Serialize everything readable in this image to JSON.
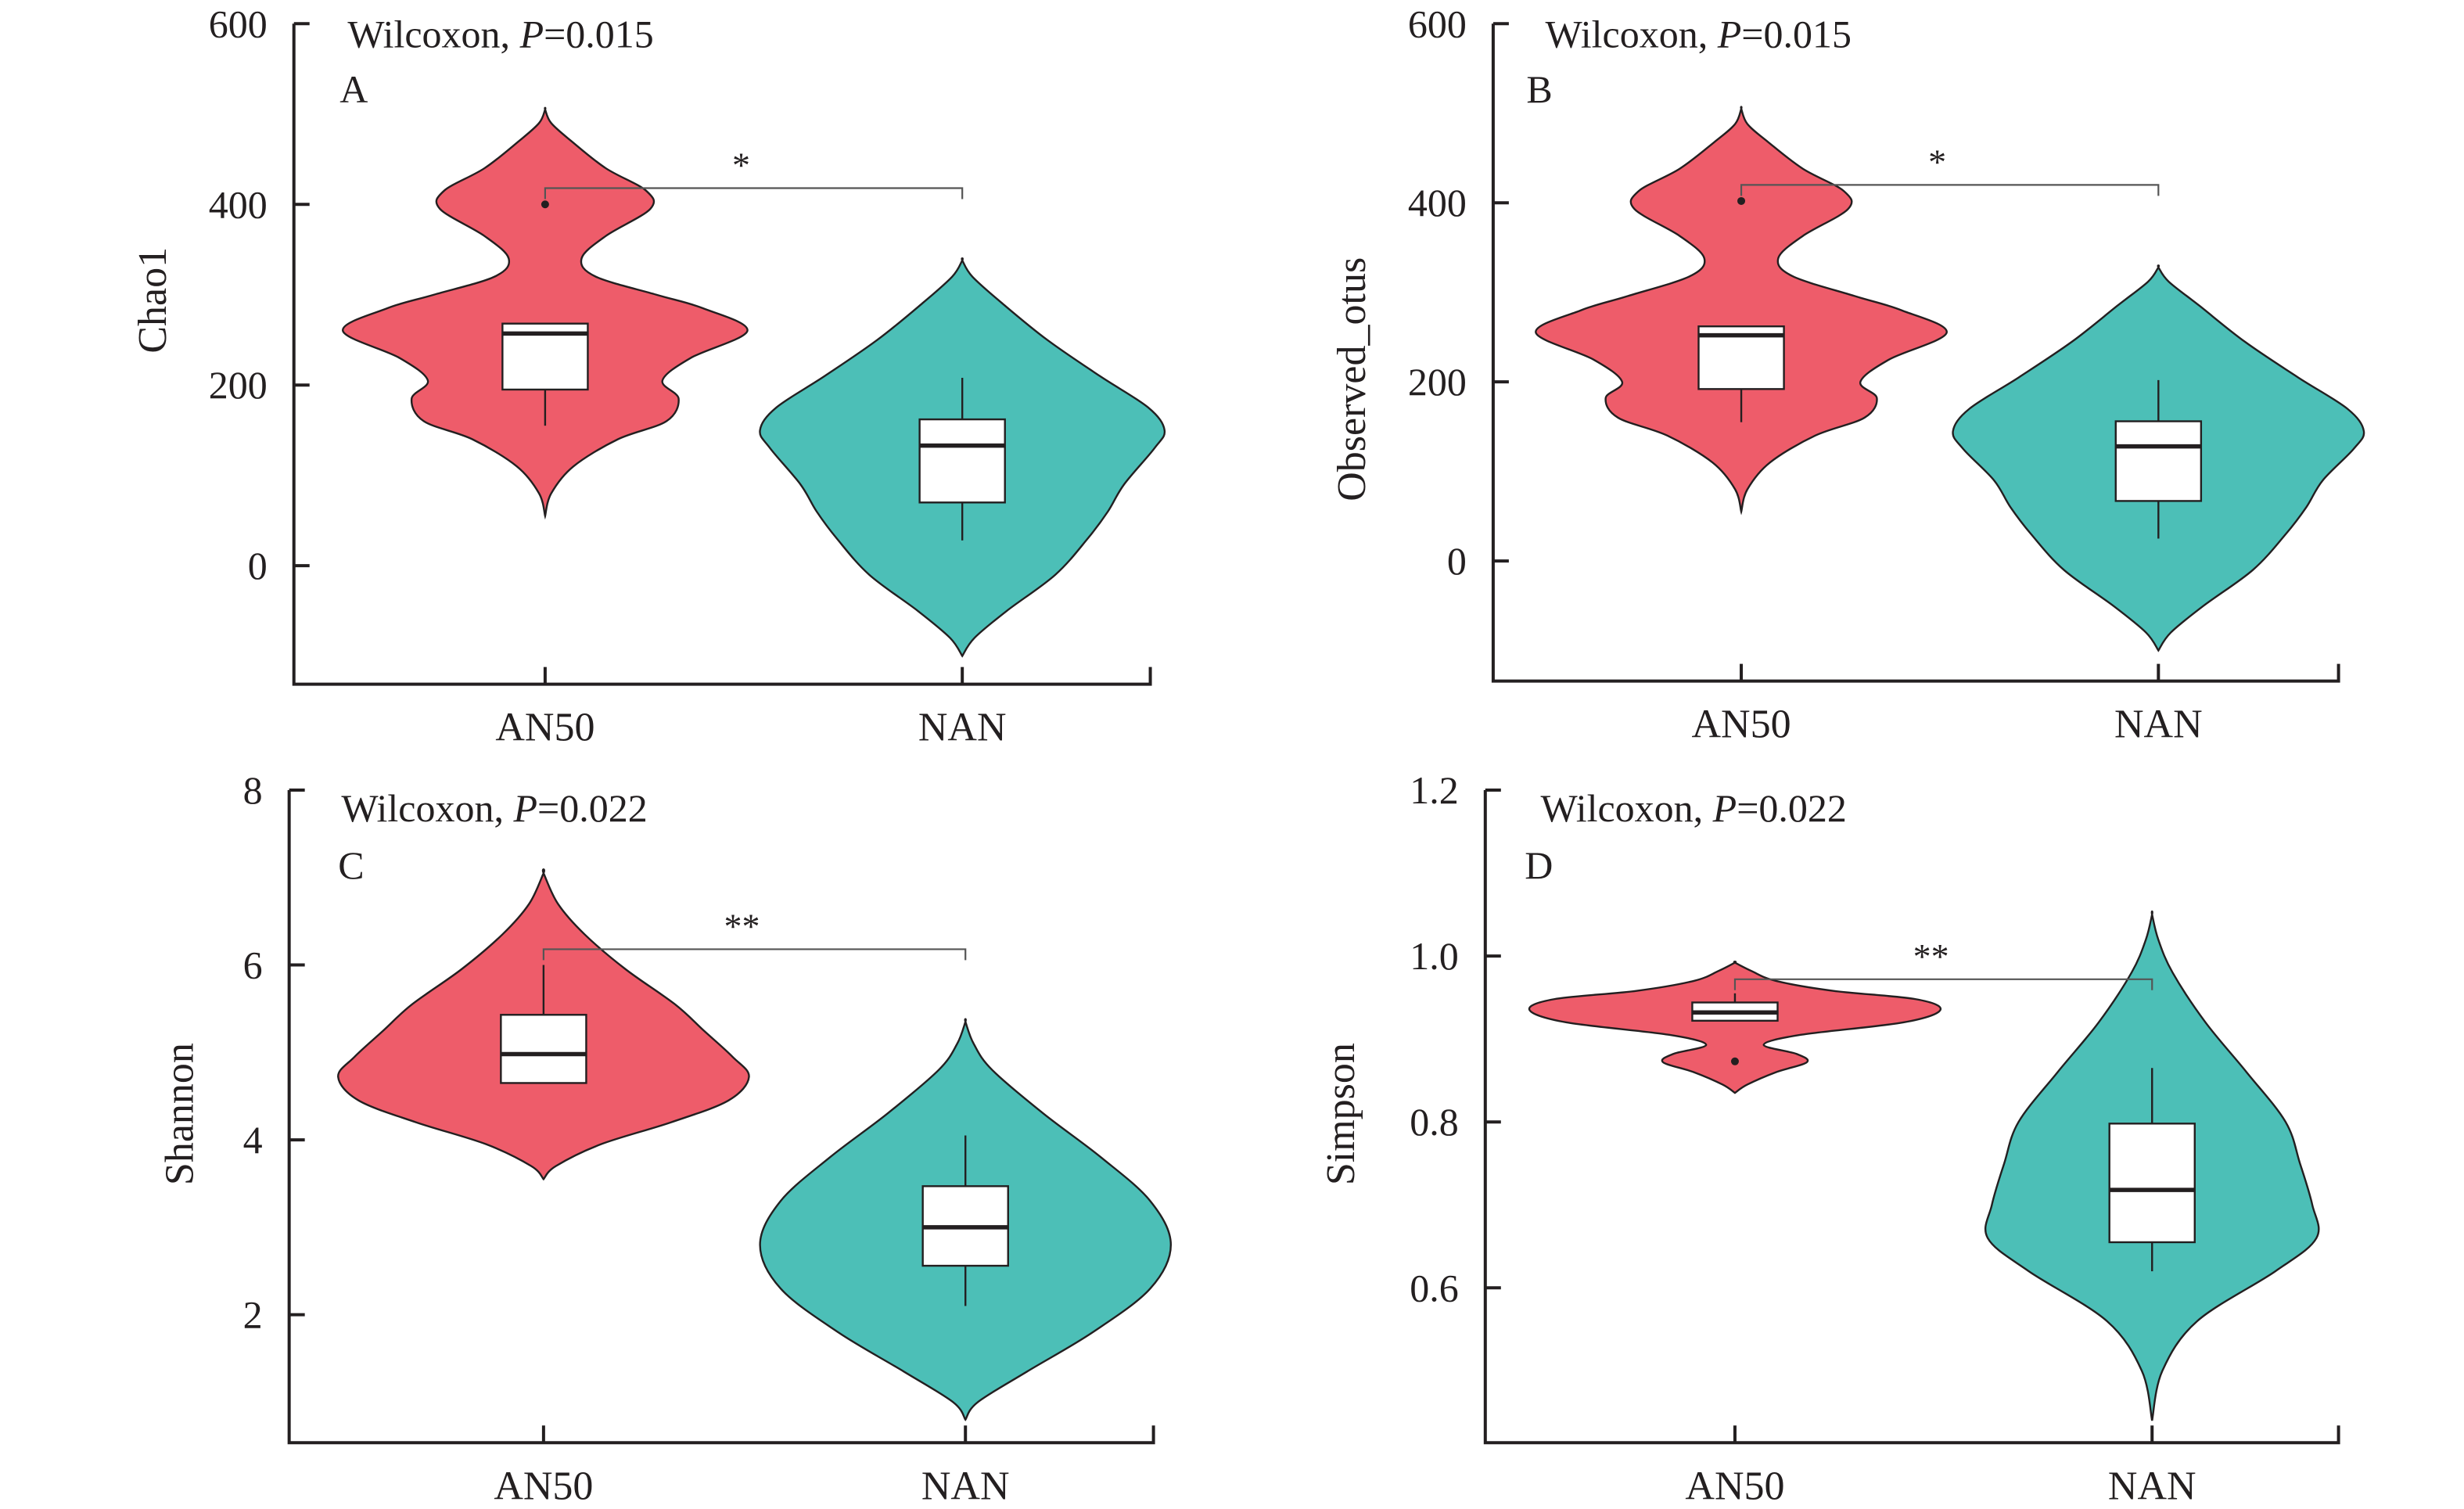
{
  "figure": {
    "colors": {
      "AN50": "#EE5C6A",
      "NAN": "#4CBFB7",
      "ink": "#231f20"
    }
  },
  "chart_data": [
    {
      "type": "violin",
      "panel": "A",
      "title": "",
      "stat_label": {
        "prefix": "Wilcoxon, ",
        "p_symbol": "P",
        "p_value": "=0.015"
      },
      "xlabel": "",
      "ylabel": "Chao1",
      "ylim": [
        -135,
        600
      ],
      "yticks": [
        0,
        200,
        400,
        600
      ],
      "ytick_labels": [
        "0",
        "200",
        "400",
        "600"
      ],
      "categories": [
        "AN50",
        "NAN"
      ],
      "significance": {
        "label": "*",
        "bracket_y": 418
      },
      "series": [
        {
          "name": "AN50",
          "box": {
            "whisker_low": 155,
            "q1": 195,
            "median": 257,
            "q3": 268,
            "whisker_high": 268
          },
          "outliers": [
            400
          ],
          "violin": [
            [
              55,
              0
            ],
            [
              80,
              0.03
            ],
            [
              110,
              0.14
            ],
            [
              140,
              0.36
            ],
            [
              160,
              0.6
            ],
            [
              185,
              0.66
            ],
            [
              205,
              0.58
            ],
            [
              230,
              0.72
            ],
            [
              260,
              1.0
            ],
            [
              285,
              0.78
            ],
            [
              300,
              0.55
            ],
            [
              320,
              0.25
            ],
            [
              340,
              0.18
            ],
            [
              365,
              0.3
            ],
            [
              395,
              0.52
            ],
            [
              415,
              0.5
            ],
            [
              440,
              0.3
            ],
            [
              470,
              0.13
            ],
            [
              490,
              0.03
            ],
            [
              505,
              0
            ]
          ]
        },
        {
          "name": "NAN",
          "box": {
            "whisker_low": 28,
            "q1": 70,
            "median": 133,
            "q3": 162,
            "whisker_high": 208
          },
          "outliers": [],
          "violin": [
            [
              -100,
              0
            ],
            [
              -80,
              0.06
            ],
            [
              -50,
              0.22
            ],
            [
              -10,
              0.46
            ],
            [
              30,
              0.62
            ],
            [
              60,
              0.72
            ],
            [
              90,
              0.8
            ],
            [
              130,
              0.95
            ],
            [
              150,
              1.0
            ],
            [
              175,
              0.92
            ],
            [
              210,
              0.68
            ],
            [
              250,
              0.42
            ],
            [
              290,
              0.2
            ],
            [
              320,
              0.05
            ],
            [
              338,
              0
            ]
          ]
        }
      ]
    },
    {
      "type": "violin",
      "panel": "B",
      "title": "",
      "stat_label": {
        "prefix": "Wilcoxon, ",
        "p_symbol": "P",
        "p_value": "=0.015"
      },
      "xlabel": "",
      "ylabel": "Observed_otus",
      "ylim": [
        -135,
        600
      ],
      "yticks": [
        0,
        200,
        400,
        600
      ],
      "ytick_labels": [
        "0",
        "200",
        "400",
        "600"
      ],
      "categories": [
        "AN50",
        "NAN"
      ],
      "significance": {
        "label": "*",
        "bracket_y": 420
      },
      "series": [
        {
          "name": "AN50",
          "box": {
            "whisker_low": 155,
            "q1": 192,
            "median": 252,
            "q3": 262,
            "whisker_high": 262
          },
          "outliers": [
            402
          ],
          "violin": [
            [
              55,
              0
            ],
            [
              80,
              0.03
            ],
            [
              110,
              0.14
            ],
            [
              140,
              0.36
            ],
            [
              160,
              0.6
            ],
            [
              182,
              0.66
            ],
            [
              200,
              0.58
            ],
            [
              225,
              0.72
            ],
            [
              255,
              1.0
            ],
            [
              280,
              0.78
            ],
            [
              296,
              0.55
            ],
            [
              318,
              0.25
            ],
            [
              338,
              0.18
            ],
            [
              363,
              0.3
            ],
            [
              393,
              0.52
            ],
            [
              413,
              0.5
            ],
            [
              438,
              0.3
            ],
            [
              468,
              0.13
            ],
            [
              488,
              0.03
            ],
            [
              505,
              0
            ]
          ]
        },
        {
          "name": "NAN",
          "box": {
            "whisker_low": 25,
            "q1": 67,
            "median": 128,
            "q3": 156,
            "whisker_high": 202
          },
          "outliers": [],
          "violin": [
            [
              -100,
              0
            ],
            [
              -80,
              0.06
            ],
            [
              -50,
              0.22
            ],
            [
              -10,
              0.46
            ],
            [
              30,
              0.62
            ],
            [
              60,
              0.72
            ],
            [
              90,
              0.8
            ],
            [
              125,
              0.95
            ],
            [
              145,
              1.0
            ],
            [
              170,
              0.92
            ],
            [
              205,
              0.68
            ],
            [
              245,
              0.42
            ],
            [
              285,
              0.2
            ],
            [
              312,
              0.05
            ],
            [
              328,
              0
            ]
          ]
        }
      ]
    },
    {
      "type": "violin",
      "panel": "C",
      "title": "",
      "stat_label": {
        "prefix": "Wilcoxon, ",
        "p_symbol": "P",
        "p_value": "=0.022"
      },
      "xlabel": "",
      "ylabel": "Shannon",
      "ylim": [
        0.55,
        8
      ],
      "yticks": [
        2,
        4,
        6,
        8
      ],
      "ytick_labels": [
        "2",
        "4",
        "6",
        "8"
      ],
      "categories": [
        "AN50",
        "NAN"
      ],
      "significance": {
        "label": "**",
        "bracket_y": 6.18
      },
      "series": [
        {
          "name": "AN50",
          "box": {
            "whisker_low": 4.65,
            "q1": 4.65,
            "median": 4.98,
            "q3": 5.43,
            "whisker_high": 6.0
          },
          "outliers": [],
          "violin": [
            [
              3.55,
              0
            ],
            [
              3.7,
              0.06
            ],
            [
              3.95,
              0.28
            ],
            [
              4.2,
              0.62
            ],
            [
              4.45,
              0.9
            ],
            [
              4.72,
              1.0
            ],
            [
              4.95,
              0.92
            ],
            [
              5.25,
              0.78
            ],
            [
              5.55,
              0.64
            ],
            [
              5.95,
              0.4
            ],
            [
              6.35,
              0.2
            ],
            [
              6.7,
              0.07
            ],
            [
              7.05,
              0
            ]
          ]
        },
        {
          "name": "NAN",
          "box": {
            "whisker_low": 2.1,
            "q1": 2.56,
            "median": 3.0,
            "q3": 3.47,
            "whisker_high": 4.05
          },
          "outliers": [],
          "violin": [
            [
              0.8,
              0
            ],
            [
              1.0,
              0.06
            ],
            [
              1.35,
              0.3
            ],
            [
              1.8,
              0.62
            ],
            [
              2.3,
              0.9
            ],
            [
              2.8,
              1.0
            ],
            [
              3.3,
              0.9
            ],
            [
              3.8,
              0.66
            ],
            [
              4.3,
              0.38
            ],
            [
              4.8,
              0.13
            ],
            [
              5.1,
              0.04
            ],
            [
              5.35,
              0
            ]
          ]
        }
      ]
    },
    {
      "type": "violin",
      "panel": "D",
      "title": "",
      "stat_label": {
        "prefix": "Wilcoxon, ",
        "p_symbol": "P",
        "p_value": "=0.022"
      },
      "xlabel": "",
      "ylabel": "Simpson",
      "ylim": [
        0.41,
        1.2
      ],
      "yticks": [
        0.6,
        0.8,
        1.0,
        1.2
      ],
      "ytick_labels": [
        "0.6",
        "0.8",
        "1.0",
        "1.2"
      ],
      "categories": [
        "AN50",
        "NAN"
      ],
      "significance": {
        "label": "**",
        "bracket_y": 0.972
      },
      "series": [
        {
          "name": "AN50",
          "box": {
            "whisker_low": 0.922,
            "q1": 0.922,
            "median": 0.932,
            "q3": 0.944,
            "whisker_high": 0.955
          },
          "outliers": [
            0.873
          ],
          "violin": [
            [
              0.835,
              0
            ],
            [
              0.845,
              0.06
            ],
            [
              0.86,
              0.2
            ],
            [
              0.872,
              0.35
            ],
            [
              0.882,
              0.3
            ],
            [
              0.893,
              0.14
            ],
            [
              0.905,
              0.32
            ],
            [
              0.92,
              0.82
            ],
            [
              0.935,
              1.0
            ],
            [
              0.948,
              0.88
            ],
            [
              0.958,
              0.48
            ],
            [
              0.97,
              0.2
            ],
            [
              0.982,
              0.08
            ],
            [
              0.992,
              0
            ]
          ]
        },
        {
          "name": "NAN",
          "box": {
            "whisker_low": 0.62,
            "q1": 0.655,
            "median": 0.718,
            "q3": 0.798,
            "whisker_high": 0.865
          },
          "outliers": [],
          "violin": [
            [
              0.44,
              0
            ],
            [
              0.5,
              0.05
            ],
            [
              0.56,
              0.22
            ],
            [
              0.62,
              0.6
            ],
            [
              0.66,
              0.8
            ],
            [
              0.7,
              0.78
            ],
            [
              0.75,
              0.72
            ],
            [
              0.8,
              0.65
            ],
            [
              0.86,
              0.46
            ],
            [
              0.92,
              0.26
            ],
            [
              0.98,
              0.1
            ],
            [
              1.02,
              0.03
            ],
            [
              1.05,
              0
            ]
          ]
        }
      ]
    }
  ]
}
